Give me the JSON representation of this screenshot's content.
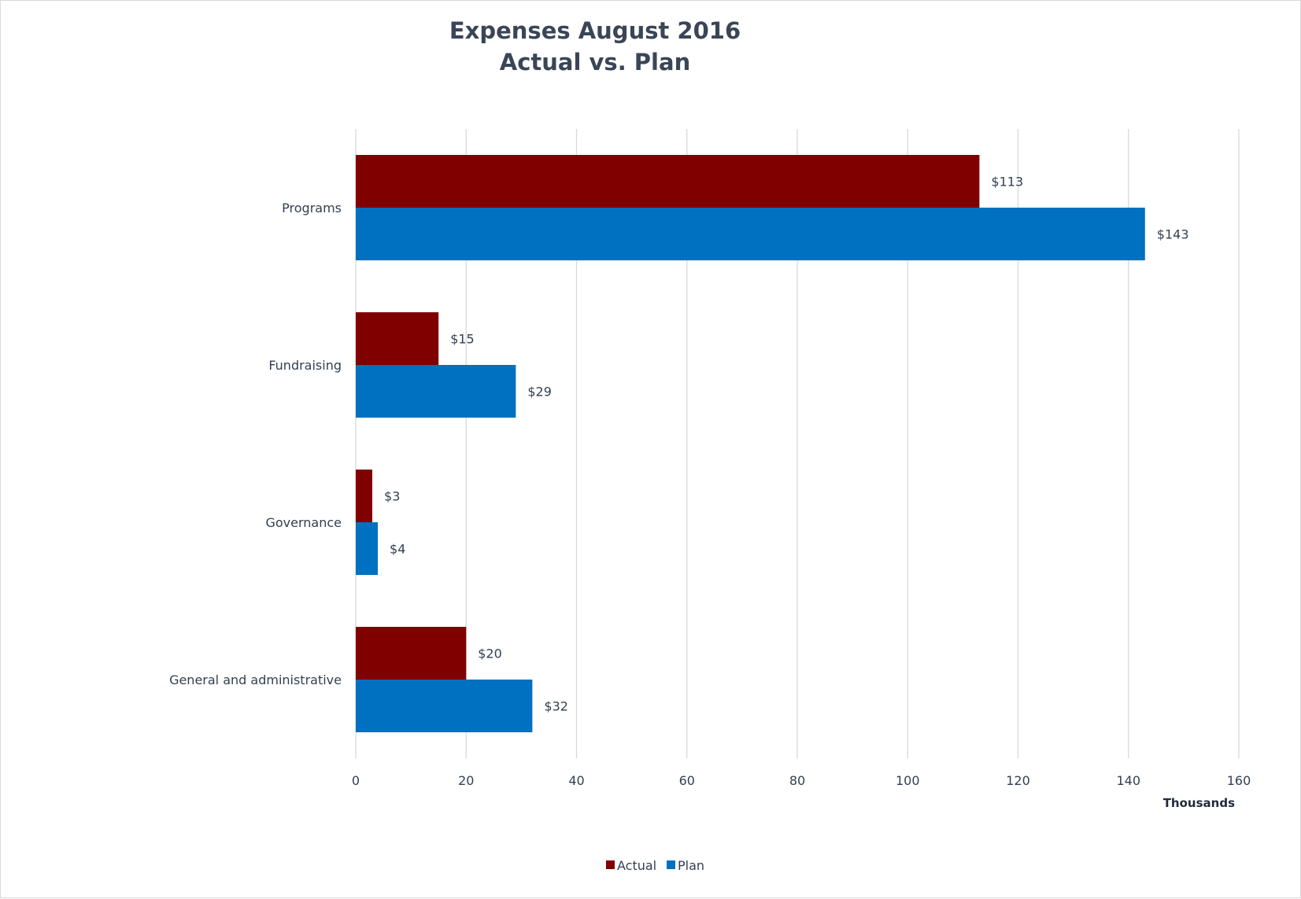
{
  "chart_data": {
    "type": "bar",
    "orientation": "horizontal",
    "title": [
      "Expenses August 2016",
      "Actual vs. Plan"
    ],
    "categories": [
      "Programs",
      "Fundraising",
      "Governance",
      "General and administrative"
    ],
    "series": [
      {
        "name": "Actual",
        "color": "#800000",
        "values": [
          113,
          15,
          3,
          20
        ],
        "labels": [
          "$113",
          "$15",
          "$3",
          "$20"
        ]
      },
      {
        "name": "Plan",
        "color": "#0070c0",
        "values": [
          143,
          29,
          4,
          32
        ],
        "labels": [
          "$143",
          "$29",
          "$4",
          "$32"
        ]
      }
    ],
    "xlim": [
      0,
      160
    ],
    "xticks": [
      0,
      20,
      40,
      60,
      80,
      100,
      120,
      140,
      160
    ],
    "units_label": "Thousands",
    "grid": "vertical",
    "legend_position": "bottom"
  }
}
